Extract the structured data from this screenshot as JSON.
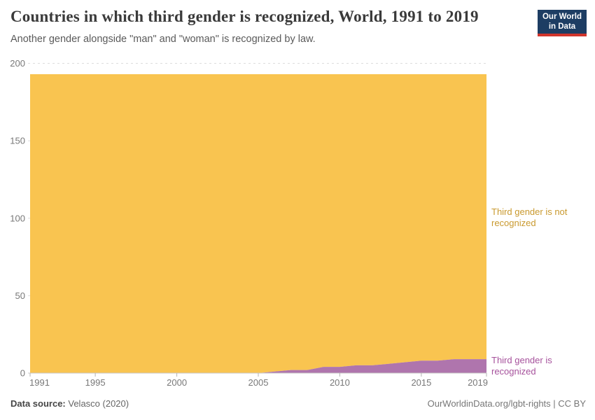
{
  "chart_data": {
    "type": "area",
    "stacked": true,
    "title": "Countries in which third gender is recognized, World, 1991 to 2019",
    "subtitle": "Another gender alongside \"man\" and \"woman\" is recognized by law.",
    "x": [
      1991,
      1992,
      1993,
      1994,
      1995,
      1996,
      1997,
      1998,
      1999,
      2000,
      2001,
      2002,
      2003,
      2004,
      2005,
      2006,
      2007,
      2008,
      2009,
      2010,
      2011,
      2012,
      2013,
      2014,
      2015,
      2016,
      2017,
      2018,
      2019
    ],
    "series": [
      {
        "name": "Third gender is recognized",
        "color": "#af75ad",
        "values": [
          0,
          0,
          0,
          0,
          0,
          0,
          0,
          0,
          0,
          0,
          0,
          0,
          0,
          0,
          0,
          1,
          2,
          2,
          4,
          4,
          5,
          5,
          6,
          7,
          8,
          8,
          9,
          9,
          9
        ]
      },
      {
        "name": "Third gender is not recognized",
        "color": "#f9c450",
        "values": [
          193,
          193,
          193,
          193,
          193,
          193,
          193,
          193,
          193,
          193,
          193,
          193,
          193,
          193,
          193,
          192,
          191,
          191,
          189,
          189,
          188,
          188,
          187,
          186,
          185,
          185,
          184,
          184,
          184
        ]
      }
    ],
    "total_countries": 193,
    "xlabel": "",
    "ylabel": "",
    "ylim": [
      0,
      200
    ],
    "yticks": [
      0,
      50,
      100,
      150,
      200
    ],
    "xticks": [
      1991,
      1995,
      2000,
      2005,
      2010,
      2015,
      2019
    ],
    "grid": "horizontal-dashed",
    "legend_position": "right-edge-annotations"
  },
  "annotations": {
    "not_recognized": "Third gender is not\nrecognized",
    "not_recognized_color": "#c9992e",
    "recognized": "Third gender is\nrecognized",
    "recognized_color": "#a6529c"
  },
  "logo": {
    "line1": "Our World",
    "line2": "in Data",
    "bg": "#1d3d63",
    "bar": "#d0342c"
  },
  "footer": {
    "source_label": "Data source:",
    "source_value": "Velasco (2020)",
    "credit": "OurWorldinData.org/lgbt-rights | CC BY"
  }
}
